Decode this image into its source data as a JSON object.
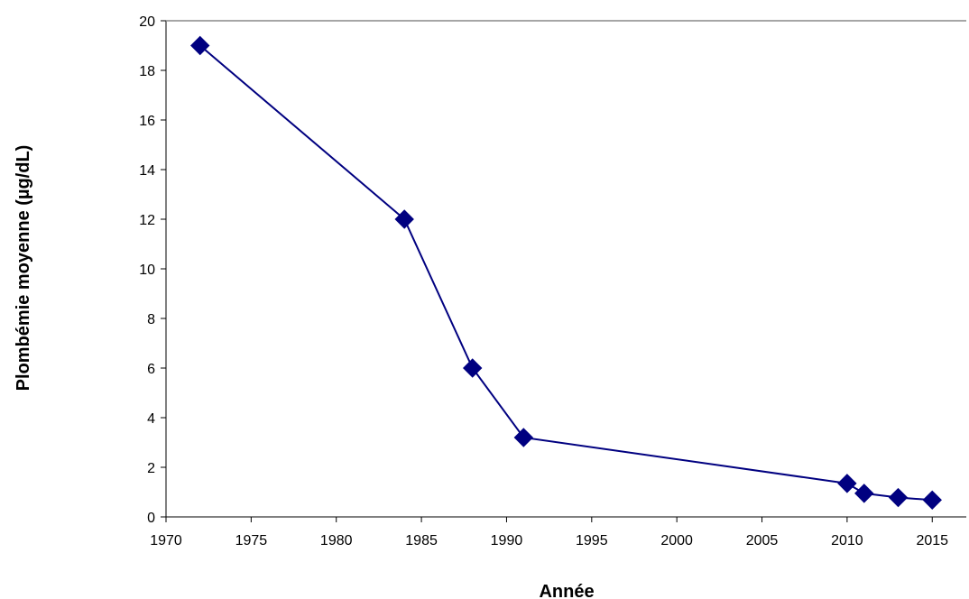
{
  "chart_data": {
    "type": "line",
    "title": "",
    "xlabel": "Année",
    "ylabel": "Plombémie moyenne (µg/dL)",
    "xlim": [
      1970,
      2017
    ],
    "ylim": [
      0,
      20
    ],
    "x_ticks": [
      "1970",
      "1975",
      "1980",
      "1985",
      "1990",
      "1995",
      "2000",
      "2005",
      "2010",
      "2015"
    ],
    "y_ticks": [
      "0",
      "2",
      "4",
      "6",
      "8",
      "10",
      "12",
      "14",
      "16",
      "18",
      "20"
    ],
    "grid": false,
    "legend": "none",
    "series": [
      {
        "color": "#000080",
        "marker": "diamond",
        "x": [
          1972,
          1984,
          1988,
          1991,
          2010,
          2011,
          2013,
          2015
        ],
        "y": [
          19.0,
          12.0,
          6.0,
          3.2,
          1.35,
          0.95,
          0.78,
          0.68
        ]
      }
    ]
  }
}
